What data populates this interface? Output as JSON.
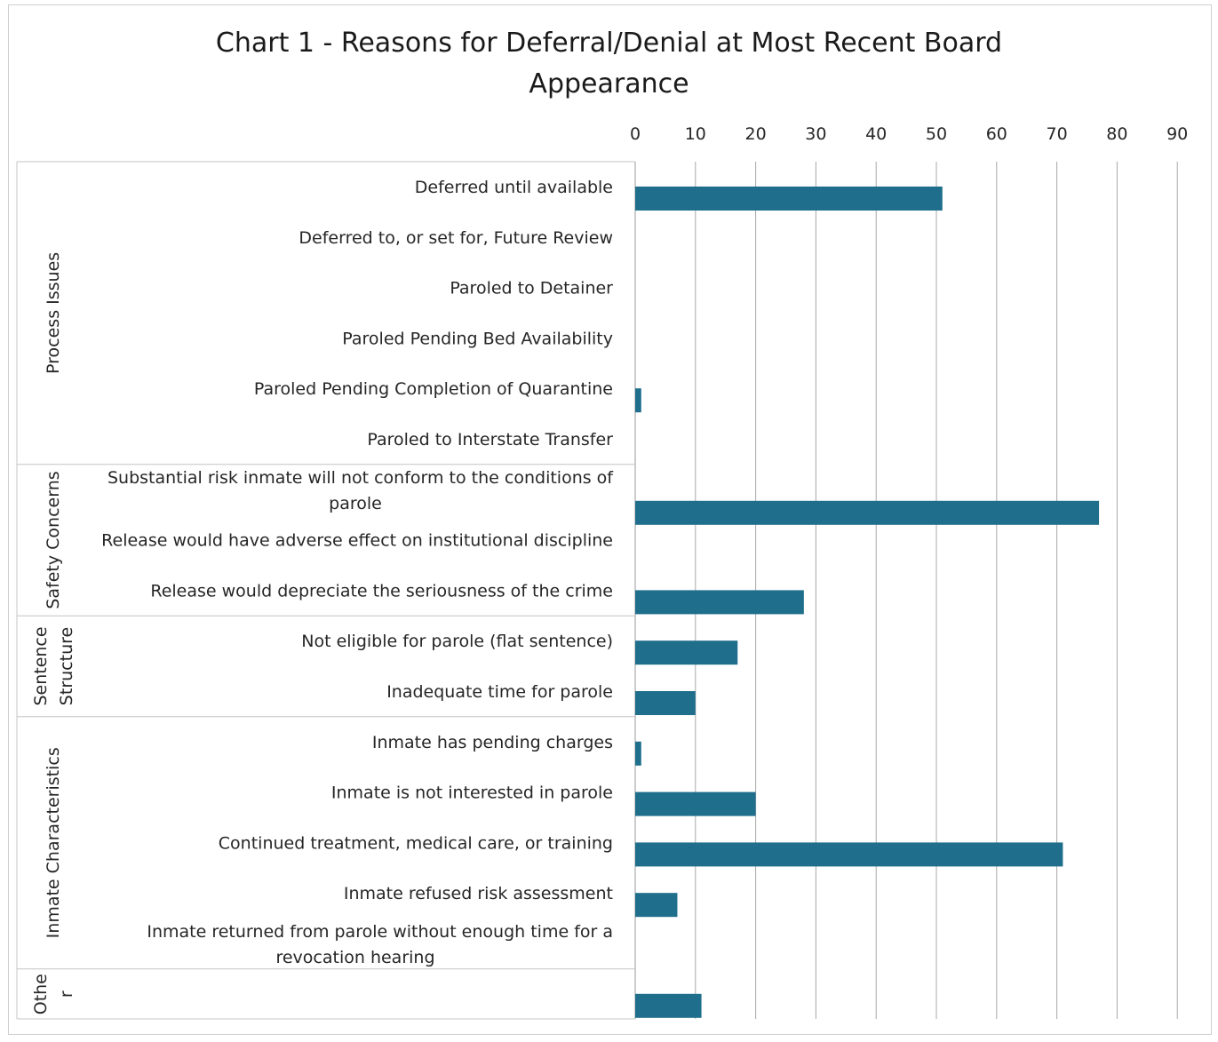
{
  "chart_data": {
    "type": "bar",
    "orientation": "horizontal",
    "title": "Chart 1  - Reasons for Deferral/Denial at Most Recent Board Appearance",
    "title_lines": [
      "Chart 1  - Reasons for Deferral/Denial at Most Recent Board",
      "Appearance"
    ],
    "xlim": [
      0,
      90
    ],
    "x_ticks": [
      0,
      10,
      20,
      30,
      40,
      50,
      60,
      70,
      80,
      90
    ],
    "axis_position": "top",
    "grid": true,
    "bar_color": "#1f6e8c",
    "groups": [
      {
        "name": "Process Issues",
        "name_lines": [
          "Process Issues"
        ],
        "categories": [
          {
            "label_lines": [
              "Deferred until available"
            ],
            "value": 51
          },
          {
            "label_lines": [
              "Deferred to, or set for, Future Review"
            ],
            "value": 0
          },
          {
            "label_lines": [
              "Paroled to Detainer"
            ],
            "value": 0
          },
          {
            "label_lines": [
              "Paroled Pending Bed Availability"
            ],
            "value": 0
          },
          {
            "label_lines": [
              "Paroled Pending Completion of Quarantine"
            ],
            "value": 1
          },
          {
            "label_lines": [
              "Paroled to Interstate Transfer"
            ],
            "value": 0
          }
        ]
      },
      {
        "name": "Safety Concerns",
        "name_lines": [
          "Safety Concerns"
        ],
        "categories": [
          {
            "label_lines": [
              "Substantial risk inmate will not conform to the conditions of",
              "parole"
            ],
            "value": 77
          },
          {
            "label_lines": [
              "Release would have adverse effect on institutional discipline"
            ],
            "value": 0
          },
          {
            "label_lines": [
              "Release would depreciate the seriousness of the crime"
            ],
            "value": 28
          }
        ]
      },
      {
        "name": "Sentence Structure",
        "name_lines": [
          "Sentence",
          "Structure"
        ],
        "categories": [
          {
            "label_lines": [
              "Not eligible for parole (flat sentence)"
            ],
            "value": 17
          },
          {
            "label_lines": [
              "Inadequate time for parole"
            ],
            "value": 10
          }
        ]
      },
      {
        "name": "Inmate Characteristics",
        "name_lines": [
          "Inmate Characteristics"
        ],
        "categories": [
          {
            "label_lines": [
              "Inmate has pending charges"
            ],
            "value": 1
          },
          {
            "label_lines": [
              "Inmate is not interested in parole"
            ],
            "value": 20
          },
          {
            "label_lines": [
              "Continued treatment, medical care, or training"
            ],
            "value": 71
          },
          {
            "label_lines": [
              "Inmate refused risk assessment"
            ],
            "value": 7
          },
          {
            "label_lines": [
              "Inmate returned from parole without enough time for a",
              "revocation hearing"
            ],
            "value": 0
          }
        ]
      },
      {
        "name": "Other",
        "name_lines": [
          "Othe",
          "r"
        ],
        "categories": [
          {
            "label_lines": [
              ""
            ],
            "value": 11
          }
        ]
      }
    ]
  }
}
